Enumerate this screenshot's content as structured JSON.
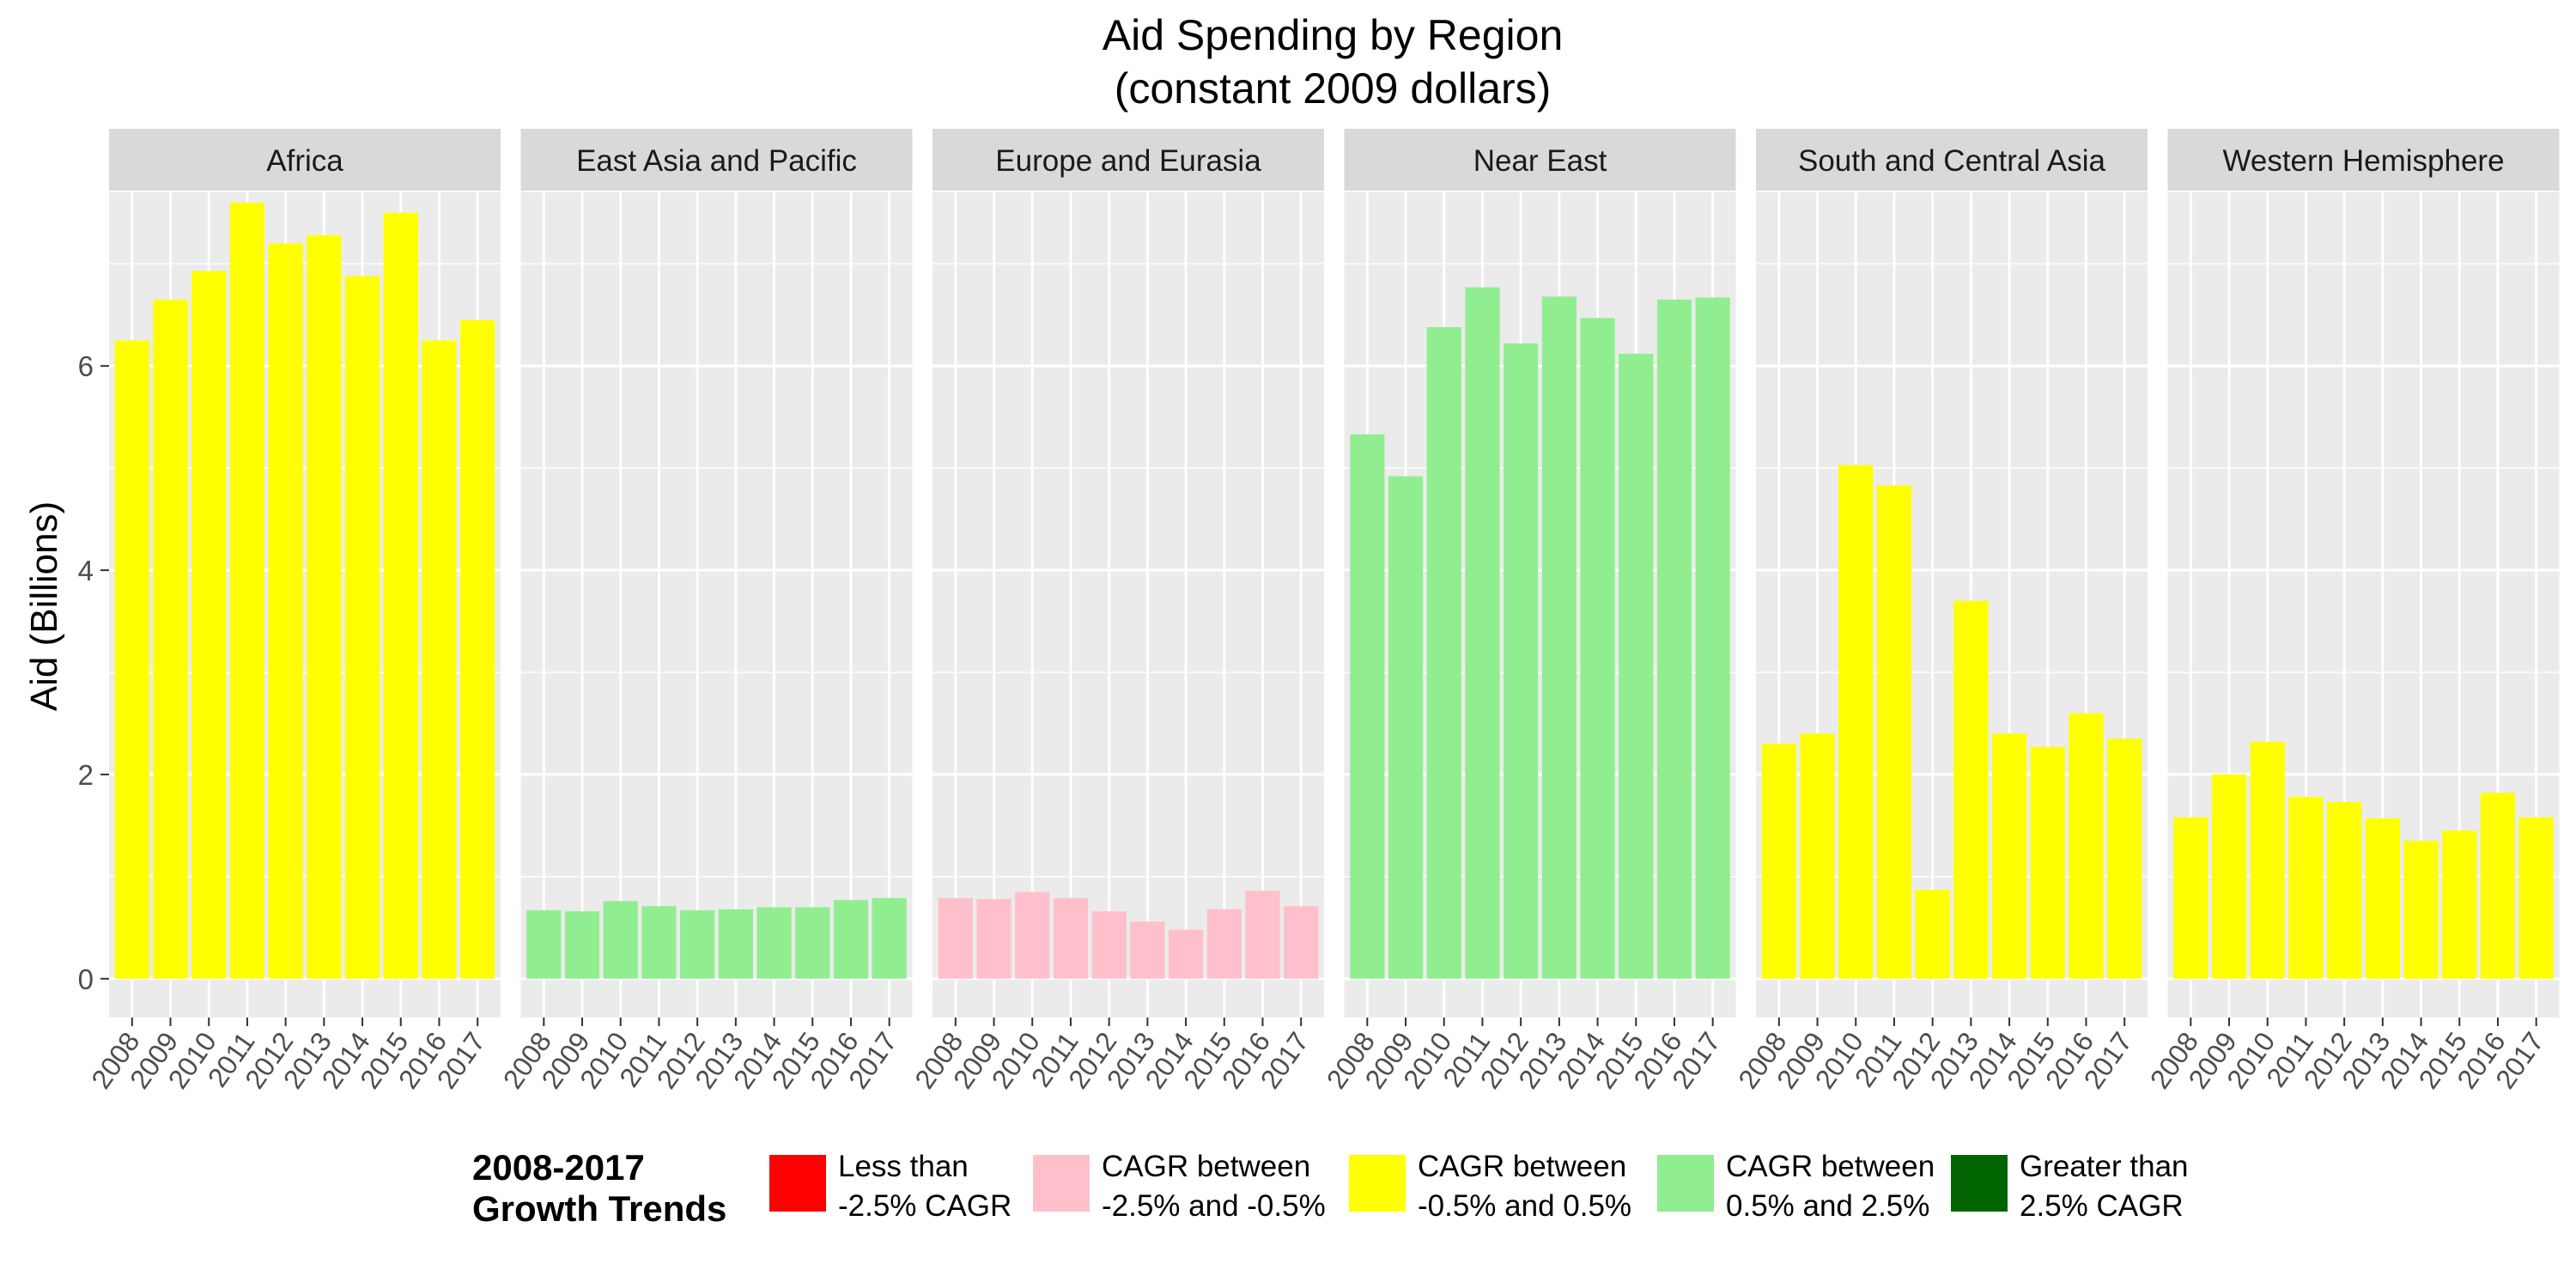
{
  "chart_data": {
    "type": "bar",
    "title_lines": [
      "Aid Spending by Region",
      "(constant 2009 dollars)"
    ],
    "xlabel": "",
    "ylabel": "Aid (Billions)",
    "ylim": [
      -0.38,
      7.7
    ],
    "yticks": [
      0,
      2,
      4,
      6
    ],
    "grid": true,
    "facets": [
      "Africa",
      "East Asia and Pacific",
      "Europe and Eurasia",
      "Near East",
      "South and Central Asia",
      "Western Hemisphere"
    ],
    "categories": [
      "2008",
      "2009",
      "2010",
      "2011",
      "2012",
      "2013",
      "2014",
      "2015",
      "2016",
      "2017"
    ],
    "series": [
      {
        "facet": "Africa",
        "trend": "CAGR between\n-0.5% and 0.5%",
        "color": "#ffff00",
        "values": [
          6.25,
          6.65,
          6.93,
          7.6,
          7.2,
          7.28,
          6.88,
          7.5,
          6.25,
          6.45
        ]
      },
      {
        "facet": "East Asia and Pacific",
        "trend": "CAGR between\n0.5% and 2.5%",
        "color": "#90ee90",
        "values": [
          0.67,
          0.66,
          0.76,
          0.71,
          0.67,
          0.68,
          0.7,
          0.7,
          0.77,
          0.79
        ]
      },
      {
        "facet": "Europe and Eurasia",
        "trend": "CAGR between\n-2.5% and -0.5%",
        "color": "#ffc0cb",
        "values": [
          0.79,
          0.78,
          0.85,
          0.79,
          0.66,
          0.56,
          0.48,
          0.68,
          0.86,
          0.71
        ]
      },
      {
        "facet": "Near East",
        "trend": "CAGR between\n0.5% and 2.5%",
        "color": "#90ee90",
        "values": [
          5.33,
          4.92,
          6.38,
          6.77,
          6.22,
          6.68,
          6.47,
          6.12,
          6.65,
          6.67
        ]
      },
      {
        "facet": "South and Central Asia",
        "trend": "CAGR between\n-0.5% and 0.5%",
        "color": "#ffff00",
        "values": [
          2.3,
          2.4,
          5.03,
          4.83,
          0.87,
          3.7,
          2.4,
          2.27,
          2.6,
          2.35
        ]
      },
      {
        "facet": "Western Hemisphere",
        "trend": "CAGR between\n-0.5% and 0.5%",
        "color": "#ffff00",
        "values": [
          1.58,
          2.0,
          2.32,
          1.78,
          1.73,
          1.57,
          1.35,
          1.45,
          1.82,
          1.58
        ]
      }
    ],
    "legend": {
      "title_lines": [
        "2008-2017",
        "Growth Trends"
      ],
      "position": "bottom",
      "entries": [
        {
          "label_lines": [
            "Less than",
            "-2.5% CAGR"
          ],
          "color": "#ff0000"
        },
        {
          "label_lines": [
            "CAGR between",
            "-2.5% and -0.5%"
          ],
          "color": "#ffc0cb"
        },
        {
          "label_lines": [
            "CAGR between",
            "-0.5% and 0.5%"
          ],
          "color": "#ffff00"
        },
        {
          "label_lines": [
            "CAGR between",
            "0.5% and 2.5%"
          ],
          "color": "#90ee90"
        },
        {
          "label_lines": [
            "Greater than",
            "2.5% CAGR"
          ],
          "color": "#006400"
        }
      ]
    },
    "colors": {
      "panel_background": "#ebebeb",
      "strip_background": "#d9d9d9",
      "gridline": "#ffffff",
      "text": "#000000",
      "axis_text": "#4d4d4d"
    }
  }
}
